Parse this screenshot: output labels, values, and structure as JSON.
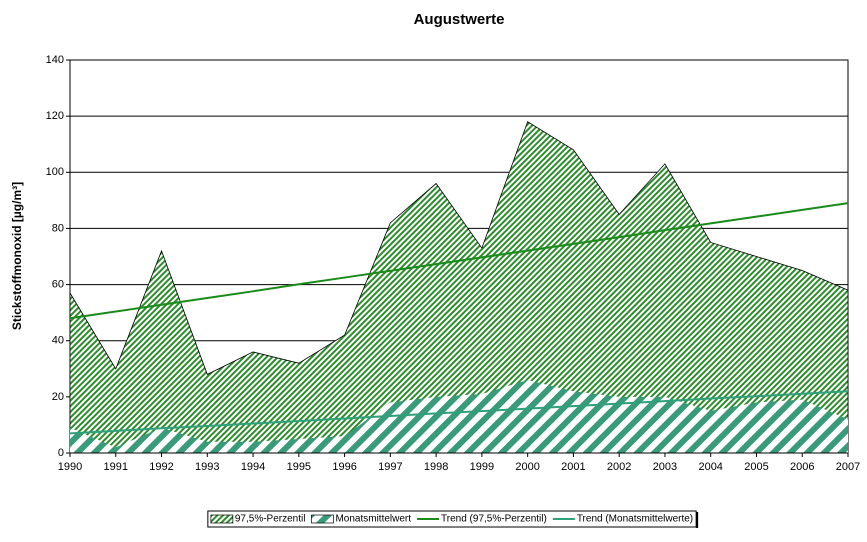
{
  "chart_data": {
    "type": "area",
    "title": "Augustwerte",
    "y_label": "Stickstoffmonoxid [µg/m³]",
    "x": [
      1990,
      1991,
      1992,
      1993,
      1994,
      1995,
      1996,
      1997,
      1998,
      1999,
      2000,
      2001,
      2002,
      2003,
      2004,
      2005,
      2006,
      2007
    ],
    "xlim": [
      1990,
      2007
    ],
    "xticks": [
      1990,
      1991,
      1992,
      1993,
      1994,
      1995,
      1996,
      1997,
      1998,
      1999,
      2000,
      2001,
      2002,
      2003,
      2004,
      2005,
      2006,
      2007
    ],
    "ylim": [
      0,
      140
    ],
    "yticks": [
      0,
      20,
      40,
      60,
      80,
      100,
      120,
      140
    ],
    "grid": true,
    "legend": "bottom",
    "series": [
      {
        "name": "97,5%-Perzentil",
        "type": "area",
        "color": "#2e8b2e",
        "values": [
          57,
          30,
          72,
          28,
          36,
          32,
          42,
          82,
          96,
          73,
          118,
          108,
          85,
          103,
          75,
          70,
          65,
          58
        ]
      },
      {
        "name": "Monatsmittelwert",
        "type": "area",
        "color": "#3a9a7a",
        "values": [
          9,
          2,
          9,
          4,
          4,
          5,
          6,
          18,
          20,
          21,
          26,
          22,
          20,
          20,
          15,
          18,
          19,
          12
        ]
      },
      {
        "name": "Trend (97,5%-Perzentil)",
        "type": "line",
        "color": "#1a8a1a",
        "values": [
          48,
          50.4,
          52.8,
          55.2,
          57.6,
          60.1,
          62.5,
          64.9,
          67.3,
          69.7,
          72.1,
          74.5,
          76.9,
          79.4,
          81.8,
          84.2,
          86.6,
          89
        ]
      },
      {
        "name": "Trend (Monatsmittelwerte)",
        "type": "line",
        "color": "#2fa07a",
        "values": [
          7,
          7.9,
          8.8,
          9.6,
          10.5,
          11.4,
          12.3,
          13.2,
          14.1,
          14.9,
          15.8,
          16.7,
          17.6,
          18.5,
          19.4,
          20.2,
          21.1,
          22
        ]
      }
    ]
  }
}
